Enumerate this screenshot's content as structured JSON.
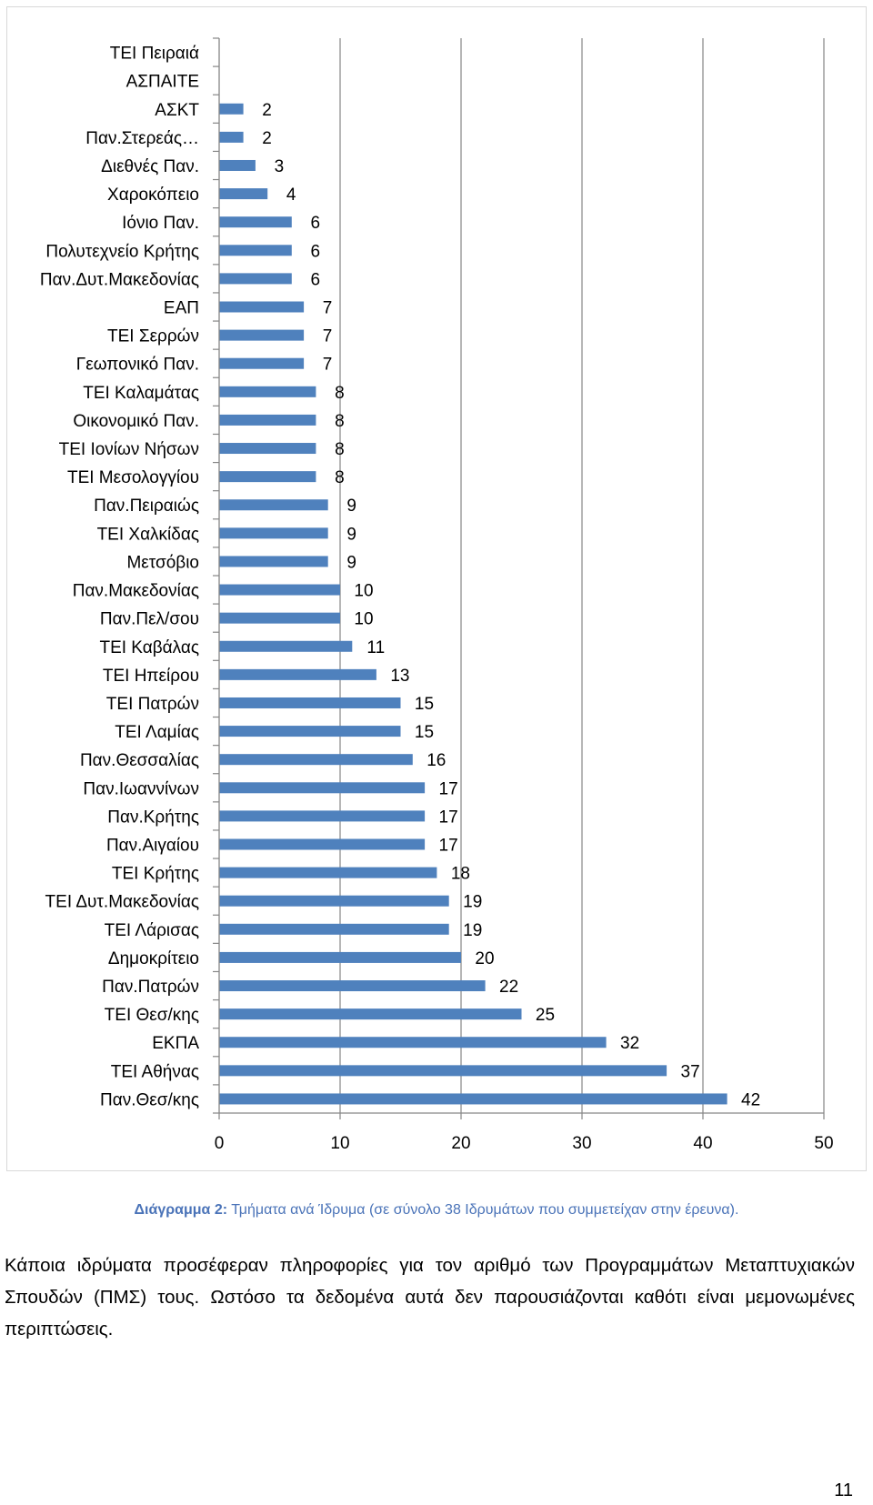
{
  "chart_data": {
    "type": "bar",
    "orientation": "horizontal",
    "title": "",
    "xlabel": "",
    "ylabel": "",
    "xlim": [
      0,
      50
    ],
    "xticks": [
      0,
      10,
      20,
      30,
      40,
      50
    ],
    "grid": true,
    "bar_color": "#4f81bd",
    "categories": [
      "ΤΕΙ Πειραιά",
      "ΑΣΠΑΙΤΕ",
      "ΑΣΚΤ",
      "Παν.Στερεάς…",
      "Διεθνές Παν.",
      "Χαροκόπειο",
      "Ιόνιο Παν.",
      "Πολυτεχνείο Κρήτης",
      "Παν.Δυτ.Μακεδονίας",
      "ΕΑΠ",
      "ΤΕΙ Σερρών",
      "Γεωπονικό Παν.",
      "ΤΕΙ Καλαμάτας",
      "Οικονομικό Παν.",
      "ΤΕΙ Ιονίων Νήσων",
      "ΤΕΙ Μεσολογγίου",
      "Παν.Πειραιώς",
      "ΤΕΙ Χαλκίδας",
      "Μετσόβιο",
      "Παν.Μακεδονίας",
      "Παν.Πελ/σου",
      "ΤΕΙ Καβάλας",
      "ΤΕΙ Ηπείρου",
      "ΤΕΙ Πατρών",
      "ΤΕΙ Λαμίας",
      "Παν.Θεσσαλίας",
      "Παν.Ιωαννίνων",
      "Παν.Κρήτης",
      "Παν.Αιγαίου",
      "ΤΕΙ Κρήτης",
      "ΤΕΙ Δυτ.Μακεδονίας",
      "ΤΕΙ Λάρισας",
      "Δημοκρίτειο",
      "Παν.Πατρών",
      "ΤΕΙ Θεσ/κης",
      "ΕΚΠΑ",
      "ΤΕΙ Αθήνας",
      "Παν.Θεσ/κης"
    ],
    "values": [
      null,
      null,
      2,
      2,
      3,
      4,
      6,
      6,
      6,
      7,
      7,
      7,
      8,
      8,
      8,
      8,
      9,
      9,
      9,
      10,
      10,
      11,
      13,
      15,
      15,
      16,
      17,
      17,
      17,
      18,
      19,
      19,
      20,
      22,
      25,
      32,
      37,
      42
    ]
  },
  "caption": {
    "prefix": "Διάγραμμα 2:",
    "text": " Τμήματα ανά Ίδρυμα (σε σύνολο 38 Ιδρυμάτων που συμμετείχαν στην έρευνα)."
  },
  "paragraph": "Κάποια ιδρύματα προσέφεραν πληροφορίες για τον αριθμό των Προγραμμάτων Μεταπτυχιακών Σπουδών (ΠΜΣ) τους. Ωστόσο τα δεδομένα αυτά δεν παρουσιάζονται καθότι είναι μεμονωμένες περιπτώσεις.",
  "page_number": "11"
}
